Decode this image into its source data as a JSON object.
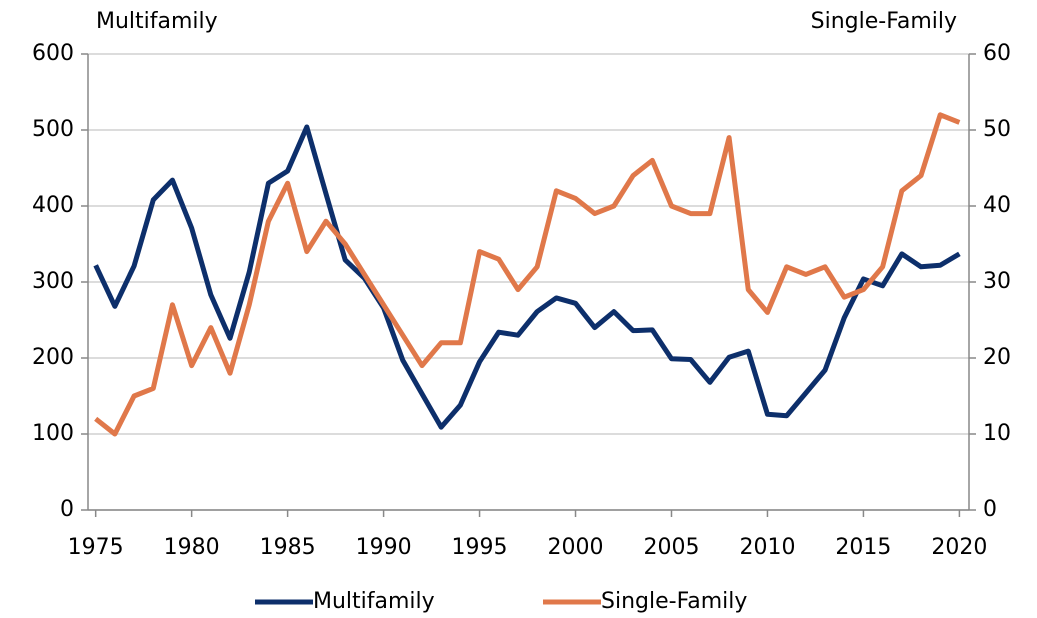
{
  "chart_data": {
    "type": "line",
    "y_label": "Multifamily",
    "y2_label": "Single-Family",
    "x": [
      1975,
      1976,
      1977,
      1978,
      1979,
      1980,
      1981,
      1982,
      1983,
      1984,
      1985,
      1986,
      1987,
      1988,
      1989,
      1990,
      1991,
      1992,
      1993,
      1994,
      1995,
      1996,
      1997,
      1998,
      1999,
      2000,
      2001,
      2002,
      2003,
      2004,
      2005,
      2006,
      2007,
      2008,
      2009,
      2010,
      2011,
      2012,
      2013,
      2014,
      2015,
      2016,
      2017,
      2018,
      2019,
      2020
    ],
    "series": [
      {
        "name": "Multifamily",
        "color": "#0d2f6b",
        "axis": "y",
        "values": [
          322,
          268,
          321,
          408,
          434,
          371,
          283,
          226,
          313,
          430,
          446,
          504,
          416,
          329,
          305,
          266,
          197,
          153,
          109,
          138,
          195,
          234,
          230,
          261,
          279,
          272,
          240,
          261,
          236,
          237,
          199,
          198,
          168,
          201,
          209,
          126,
          124,
          154,
          184,
          253,
          304,
          295,
          337,
          320,
          322,
          337
        ]
      },
      {
        "name": "Single-Family",
        "color": "#e0784a",
        "axis": "y2",
        "values": [
          12,
          10,
          15,
          16,
          27,
          19,
          24,
          18,
          27,
          38,
          43,
          34,
          38,
          35,
          31,
          27,
          23,
          19,
          22,
          22,
          34,
          33,
          29,
          32,
          42,
          41,
          39,
          40,
          44,
          46,
          40,
          39,
          39,
          49,
          29,
          26,
          32,
          31,
          32,
          28,
          29,
          32,
          42,
          44,
          52,
          51
        ]
      }
    ],
    "xlim": [
      1974.6,
      2020.5
    ],
    "xticks": [
      1975,
      1980,
      1985,
      1990,
      1995,
      2000,
      2005,
      2010,
      2015,
      2020
    ],
    "ylim": [
      0,
      600
    ],
    "yticks": [
      0,
      100,
      200,
      300,
      400,
      500,
      600
    ],
    "y2lim": [
      0,
      60
    ],
    "y2ticks": [
      0,
      10,
      20,
      30,
      40,
      50,
      60
    ],
    "grid": true,
    "legend": "bottom"
  }
}
